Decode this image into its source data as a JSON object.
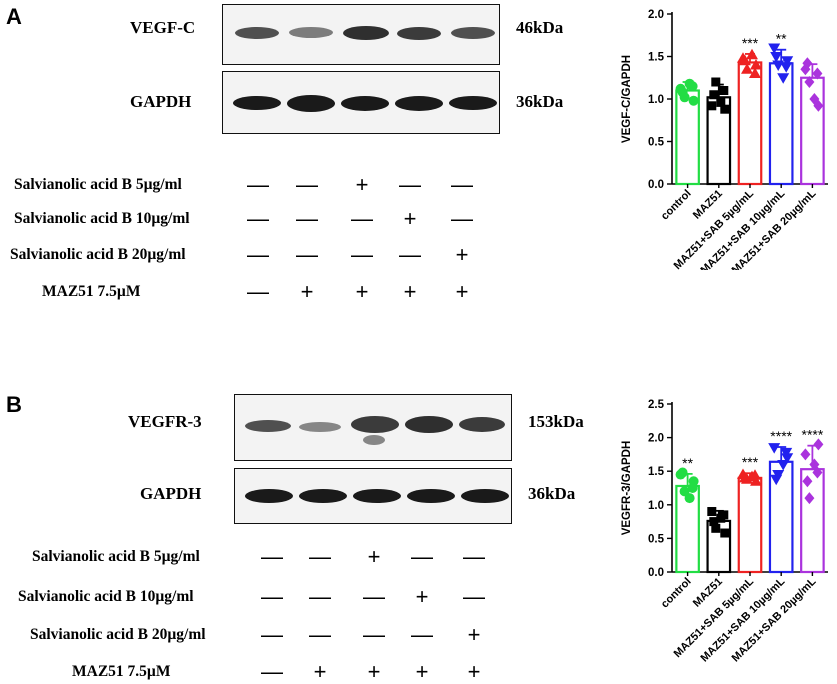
{
  "panels": [
    {
      "letter": "A",
      "blots": [
        {
          "protein": "VEGF-C",
          "kda": "46kDa"
        },
        {
          "protein": "GAPDH",
          "kda": "36kDa"
        }
      ],
      "conditions": [
        {
          "label": "Salvianolic acid B 5µg/ml",
          "signs": [
            "—",
            "—",
            "+",
            "—",
            "—"
          ]
        },
        {
          "label": "Salvianolic acid B 10µg/ml",
          "signs": [
            "—",
            "—",
            "—",
            "+",
            "—"
          ]
        },
        {
          "label": "Salvianolic acid B 20µg/ml",
          "signs": [
            "—",
            "—",
            "—",
            "—",
            "+"
          ]
        },
        {
          "label": "MAZ51 7.5µM",
          "signs": [
            "—",
            "+",
            "+",
            "+",
            "+"
          ]
        }
      ]
    },
    {
      "letter": "B",
      "blots": [
        {
          "protein": "VEGFR-3",
          "kda": "153kDa"
        },
        {
          "protein": "GAPDH",
          "kda": "36kDa"
        }
      ],
      "conditions": [
        {
          "label": "Salvianolic acid B 5µg/ml",
          "signs": [
            "—",
            "—",
            "+",
            "—",
            "—"
          ]
        },
        {
          "label": "Salvianolic acid B 10µg/ml",
          "signs": [
            "—",
            "—",
            "—",
            "+",
            "—"
          ]
        },
        {
          "label": "Salvianolic acid B 20µg/ml",
          "signs": [
            "—",
            "—",
            "—",
            "—",
            "+"
          ]
        },
        {
          "label": "MAZ51 7.5µM",
          "signs": [
            "—",
            "+",
            "+",
            "+",
            "+"
          ]
        }
      ]
    }
  ],
  "chart_data": [
    {
      "type": "bar",
      "ylabel": "VEGF-C/GAPDH",
      "ylim": [
        0,
        2.0
      ],
      "yticks": [
        "0.0",
        "0.5",
        "1.0",
        "1.5",
        "2.0"
      ],
      "categories": [
        "control",
        "MAZ51",
        "MAZ51+SAB 5µg/mL",
        "MAZ51+SAB 10µg/mL",
        "MAZ51+SAB 20µg/mL"
      ],
      "values": [
        1.1,
        1.02,
        1.43,
        1.42,
        1.25
      ],
      "errors": [
        0.1,
        0.15,
        0.1,
        0.16,
        0.16
      ],
      "significance": [
        "",
        "",
        "***",
        "**",
        ""
      ],
      "colors": [
        "#22dd44",
        "#000000",
        "#ee2222",
        "#2222ee",
        "#aa33dd"
      ],
      "markers": [
        "circle",
        "square",
        "triangle-up",
        "triangle-down",
        "diamond"
      ],
      "points": [
        [
          1.12,
          1.02,
          1.18,
          0.98,
          1.08,
          1.15
        ],
        [
          0.92,
          1.2,
          0.96,
          0.88,
          1.05,
          1.1
        ],
        [
          1.48,
          1.35,
          1.52,
          1.4,
          1.45,
          1.3
        ],
        [
          1.6,
          1.4,
          1.25,
          1.45,
          1.5,
          1.38
        ],
        [
          1.35,
          1.2,
          1.0,
          0.92,
          1.42,
          1.3
        ]
      ]
    },
    {
      "type": "bar",
      "ylabel": "VEGFR-3/GAPDH",
      "ylim": [
        0,
        2.5
      ],
      "yticks": [
        "0.0",
        "0.5",
        "1.0",
        "1.5",
        "2.0",
        "2.5"
      ],
      "categories": [
        "control",
        "MAZ51",
        "MAZ51+SAB 5µg/mL",
        "MAZ51+SAB 10µg/mL",
        "MAZ51+SAB 20µg/mL"
      ],
      "values": [
        1.28,
        0.76,
        1.4,
        1.64,
        1.53
      ],
      "errors": [
        0.18,
        0.15,
        0.07,
        0.22,
        0.35
      ],
      "significance": [
        "**",
        "",
        "***",
        "****",
        "****"
      ],
      "colors": [
        "#22dd44",
        "#000000",
        "#ee2222",
        "#2222ee",
        "#aa33dd"
      ],
      "markers": [
        "circle",
        "square",
        "triangle-up",
        "triangle-down",
        "diamond"
      ],
      "points": [
        [
          1.45,
          1.2,
          1.1,
          1.35,
          1.48,
          1.25
        ],
        [
          0.9,
          0.65,
          0.8,
          0.58,
          0.75,
          0.85
        ],
        [
          1.45,
          1.38,
          1.42,
          1.35,
          1.4,
          1.44
        ],
        [
          1.85,
          1.45,
          1.6,
          1.7,
          1.38,
          1.78
        ],
        [
          1.75,
          1.1,
          1.6,
          1.9,
          1.35,
          1.48
        ]
      ]
    }
  ]
}
